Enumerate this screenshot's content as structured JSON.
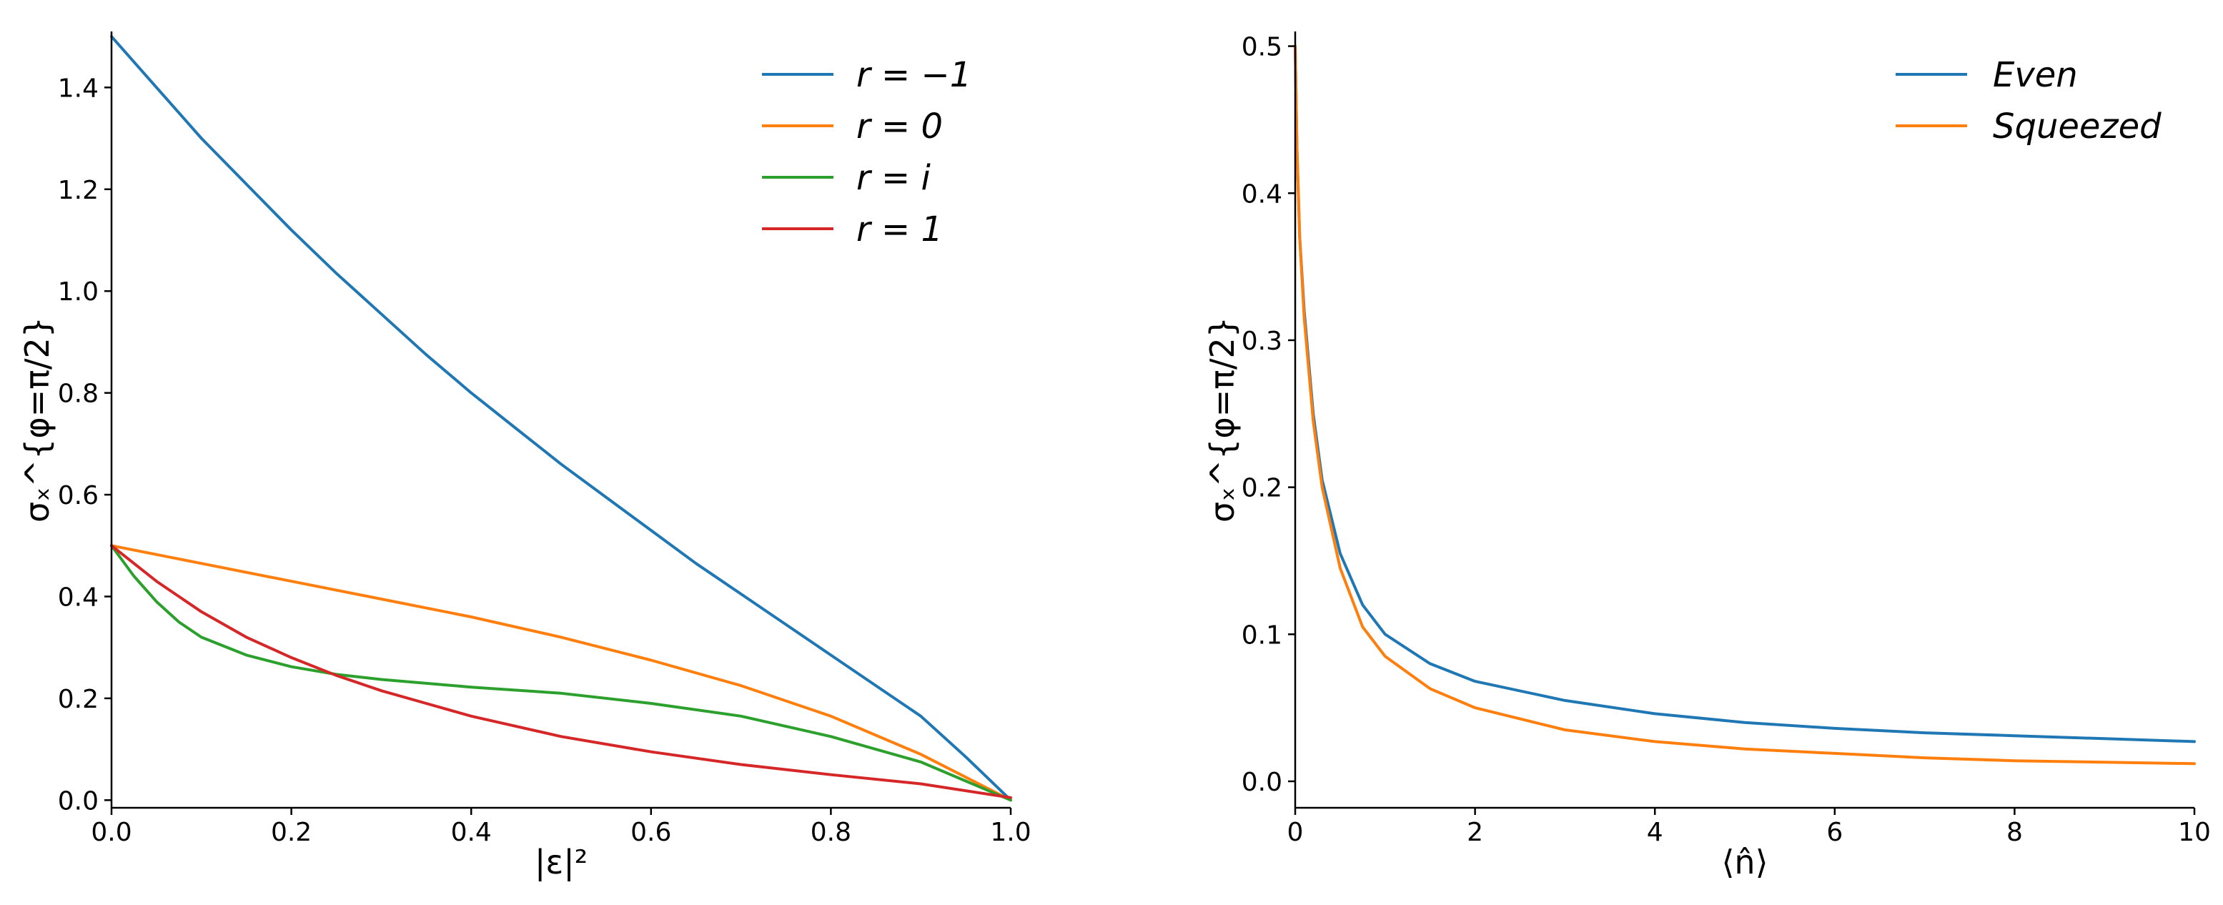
{
  "chart_data": [
    {
      "type": "line",
      "xlabel": "|ε|²",
      "ylabel": "σₓ^{φ=π/2}",
      "xlim": [
        0.0,
        1.0
      ],
      "ylim": [
        -0.015,
        1.51
      ],
      "xticks": [
        "0.0",
        "0.2",
        "0.4",
        "0.6",
        "0.8",
        "1.0"
      ],
      "yticks": [
        "0.0",
        "0.2",
        "0.4",
        "0.6",
        "0.8",
        "1.0",
        "1.2",
        "1.4"
      ],
      "legend_position": "top-right",
      "grid": false,
      "series": [
        {
          "name": "r = −1",
          "color": "#1f77b4",
          "x": [
            0,
            0.05,
            0.1,
            0.15,
            0.2,
            0.25,
            0.3,
            0.35,
            0.4,
            0.45,
            0.5,
            0.55,
            0.6,
            0.65,
            0.7,
            0.75,
            0.8,
            0.85,
            0.9,
            0.95,
            1.0
          ],
          "y": [
            1.5,
            1.4,
            1.3,
            1.21,
            1.12,
            1.035,
            0.955,
            0.875,
            0.8,
            0.73,
            0.66,
            0.595,
            0.53,
            0.465,
            0.405,
            0.345,
            0.285,
            0.225,
            0.165,
            0.085,
            0.0
          ]
        },
        {
          "name": "r = 0",
          "color": "#ff7f0e",
          "x": [
            0,
            0.1,
            0.2,
            0.3,
            0.4,
            0.5,
            0.6,
            0.7,
            0.8,
            0.9,
            1.0
          ],
          "y": [
            0.5,
            0.465,
            0.43,
            0.395,
            0.36,
            0.32,
            0.275,
            0.225,
            0.165,
            0.09,
            0.0
          ]
        },
        {
          "name": "r = i",
          "color": "#2ca02c",
          "x": [
            0,
            0.025,
            0.05,
            0.075,
            0.1,
            0.15,
            0.2,
            0.25,
            0.3,
            0.4,
            0.5,
            0.6,
            0.7,
            0.8,
            0.9,
            1.0
          ],
          "y": [
            0.5,
            0.44,
            0.39,
            0.35,
            0.32,
            0.285,
            0.262,
            0.247,
            0.237,
            0.222,
            0.21,
            0.19,
            0.165,
            0.125,
            0.075,
            0.0
          ]
        },
        {
          "name": "r = 1",
          "color": "#d62728",
          "x": [
            0,
            0.05,
            0.1,
            0.15,
            0.2,
            0.25,
            0.3,
            0.35,
            0.4,
            0.5,
            0.6,
            0.7,
            0.8,
            0.9,
            1.0
          ],
          "y": [
            0.5,
            0.43,
            0.37,
            0.32,
            0.28,
            0.245,
            0.215,
            0.19,
            0.165,
            0.125,
            0.095,
            0.07,
            0.05,
            0.032,
            0.005
          ]
        }
      ]
    },
    {
      "type": "line",
      "xlabel": "⟨n̂⟩",
      "ylabel": "σₓ^{φ=π/2}",
      "xlim": [
        0,
        10
      ],
      "ylim": [
        -0.018,
        0.51
      ],
      "xticks": [
        "0",
        "2",
        "4",
        "6",
        "8",
        "10"
      ],
      "yticks": [
        "0.0",
        "0.1",
        "0.2",
        "0.3",
        "0.4",
        "0.5"
      ],
      "legend_position": "top-right",
      "grid": false,
      "series": [
        {
          "name": "Even",
          "color": "#1f77b4",
          "x": [
            0.0,
            0.02,
            0.05,
            0.1,
            0.2,
            0.3,
            0.5,
            0.75,
            1.0,
            1.5,
            2.0,
            3.0,
            4.0,
            5.0,
            6.0,
            7.0,
            8.0,
            9.0,
            10.0
          ],
          "y": [
            0.5,
            0.43,
            0.37,
            0.32,
            0.25,
            0.205,
            0.155,
            0.12,
            0.1,
            0.08,
            0.068,
            0.055,
            0.046,
            0.04,
            0.036,
            0.033,
            0.031,
            0.029,
            0.027
          ]
        },
        {
          "name": "Squeezed",
          "color": "#ff7f0e",
          "x": [
            0.0,
            0.02,
            0.05,
            0.1,
            0.2,
            0.3,
            0.5,
            0.75,
            1.0,
            1.5,
            2.0,
            3.0,
            4.0,
            5.0,
            6.0,
            7.0,
            8.0,
            9.0,
            10.0
          ],
          "y": [
            0.5,
            0.43,
            0.37,
            0.315,
            0.245,
            0.2,
            0.145,
            0.105,
            0.085,
            0.063,
            0.05,
            0.035,
            0.027,
            0.022,
            0.019,
            0.016,
            0.014,
            0.013,
            0.012
          ]
        }
      ]
    }
  ]
}
